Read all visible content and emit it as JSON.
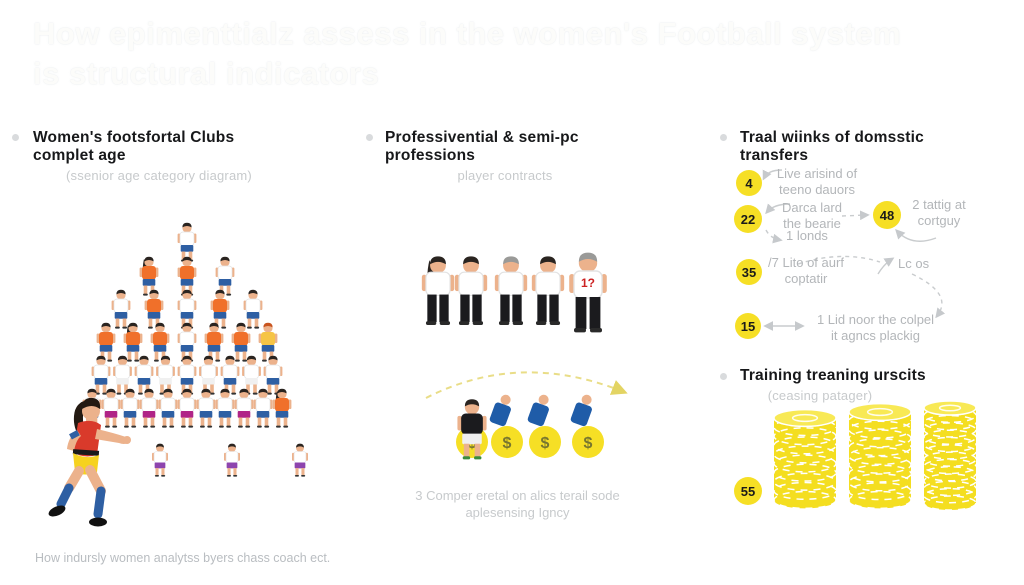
{
  "title": {
    "line1": "How epimenttialz assess in the women's Football system",
    "line2": "is structural indicators"
  },
  "left": {
    "heading": "Women's footsfortal Clubs complet age",
    "sub": "(ssenior age category diagram)"
  },
  "middle": {
    "heading": "Professivential & semi-pc professions",
    "sub": "player contracts",
    "caption1": "3 Comper eretal on alics terail sode",
    "caption2": "aplesensing Igncy",
    "coin_symbol": "$",
    "big_figure_mark": "1?"
  },
  "right": {
    "heading": "Traal wiinks of  domsstic transfers",
    "transfers": [
      {
        "value": "4",
        "lines": [
          "Live arisind of",
          "teeno dauors"
        ]
      },
      {
        "value": "22",
        "lines": [
          "Darca lard",
          "the bearie"
        ],
        "extra": "1 londs"
      },
      {
        "value": "48",
        "lines": [
          "2 tattig at",
          "cortguy"
        ]
      },
      {
        "value": "35",
        "lines": [
          "/7 Lito of aurf",
          "coptatir"
        ],
        "extra": "Lc os"
      },
      {
        "value": "15",
        "lines": [
          "1 Lid noor the colpel",
          "it agncs plackig"
        ]
      }
    ],
    "training": {
      "heading": "Training treaning urscits",
      "sub": "(ceasing patager)",
      "badge": "55",
      "stacks": [
        10,
        11,
        14
      ]
    }
  },
  "footer": {
    "caption": "How indursly women analytss byers chass coach ect."
  },
  "pyramid": {
    "rows": [
      {
        "figs": [
          {
            "s": "W"
          }
        ]
      },
      {
        "figs": [
          {
            "s": "O",
            "l": 1
          },
          {
            "s": "O"
          },
          {
            "s": "W"
          }
        ]
      },
      {
        "figs": [
          {
            "s": "W"
          },
          {
            "s": "O"
          },
          {
            "s": "W"
          },
          {
            "s": "O"
          },
          {
            "s": "W"
          }
        ]
      },
      {
        "figs": [
          {
            "s": "O"
          },
          {
            "s": "O",
            "l": 1
          },
          {
            "s": "O"
          },
          {
            "s": "W"
          },
          {
            "s": "O"
          },
          {
            "s": "O"
          },
          {
            "s": "Y",
            "h": "R"
          }
        ]
      },
      {
        "figs": [
          {
            "s": "W"
          },
          {
            "s": "W",
            "p": "Wt"
          },
          {
            "s": "W"
          },
          {
            "s": "W",
            "p": "Wt"
          },
          {
            "s": "W"
          },
          {
            "s": "W",
            "p": "Wt"
          },
          {
            "s": "W"
          },
          {
            "s": "W",
            "p": "Wt"
          },
          {
            "s": "W"
          }
        ]
      },
      {
        "figs": [
          {
            "s": "W"
          },
          {
            "s": "W",
            "p": "M"
          },
          {
            "s": "W"
          },
          {
            "s": "W",
            "p": "M"
          },
          {
            "s": "W"
          },
          {
            "s": "W",
            "p": "M"
          },
          {
            "s": "W"
          },
          {
            "s": "W"
          },
          {
            "s": "W",
            "p": "M"
          },
          {
            "s": "W"
          },
          {
            "s": "O",
            "l": 1
          }
        ]
      },
      {
        "figs": [
          {
            "s": "W",
            "p": "P"
          },
          {
            "s": "W",
            "p": "P"
          },
          {
            "s": "W",
            "p": "P"
          }
        ]
      }
    ]
  },
  "colors": {
    "accent_yellow": "#f6df25",
    "coin_yellow": "#f4de20",
    "orange": "#f0702a",
    "kid_yellow": "#f6c445",
    "blue": "#2e5fa3",
    "magenta": "#b02487",
    "purple": "#8e44ad",
    "white_shirt": "#ffffff",
    "light_shorts": "#f0f0f0",
    "skin": "#ecb28c",
    "hair_dark": "#2a2420",
    "hair_red": "#c8541f",
    "hair_gray": "#9a9a98",
    "woman_red": "#d93a2b",
    "pants_black": "#1b1b1e",
    "arrow_gray": "#c6c9cc",
    "arc_yellow": "#e9dd87",
    "dollar_green": "#77762f"
  }
}
